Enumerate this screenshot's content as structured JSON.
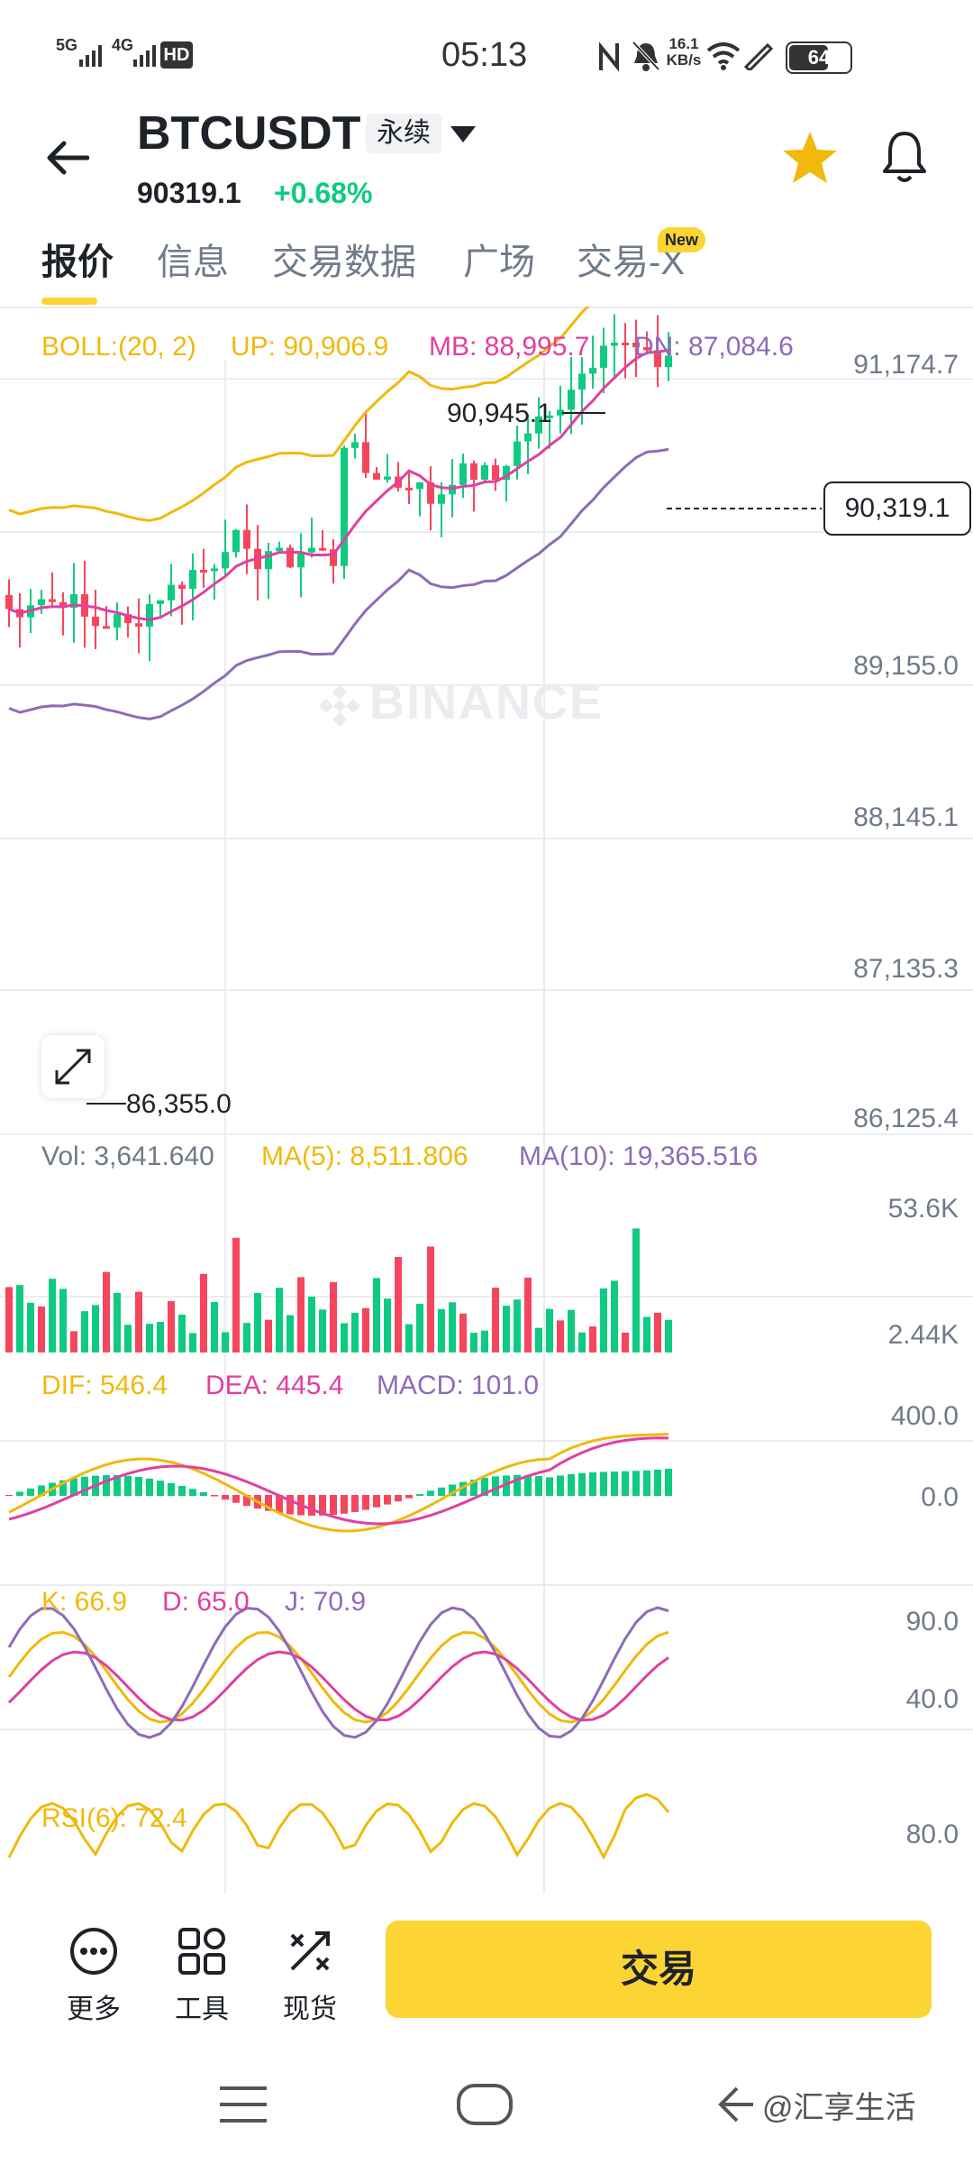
{
  "status_bar": {
    "network_1": "5G",
    "network_2": "4G",
    "hd_label": "HD",
    "clock": "05:13",
    "speed_value": "16.1",
    "speed_unit": "KB/s",
    "battery": "64"
  },
  "header": {
    "pair": "BTCUSDT",
    "perp_tag": "永续",
    "price": "90319.1",
    "change": "+0.68%"
  },
  "tabs": [
    {
      "label": "报价",
      "active": true
    },
    {
      "label": "信息",
      "active": false
    },
    {
      "label": "交易数据",
      "active": false
    },
    {
      "label": "广场",
      "active": false
    },
    {
      "label": "交易-X",
      "active": false
    }
  ],
  "new_badge": "New",
  "boll": {
    "label": "BOLL:(20, 2)",
    "up": "UP: 90,906.9",
    "mb": "MB: 88,995.7",
    "dn": "DN: 87,084.6"
  },
  "price_axis": [
    "91,174.7",
    "89,155.0",
    "88,145.1",
    "87,135.3",
    "86,125.4"
  ],
  "high_marker": "90,945.1",
  "low_marker": "86,355.0",
  "current_price_label": "90,319.1",
  "watermark_brand": "BINANCE",
  "volume": {
    "vol": "Vol: 3,641.640",
    "ma5": "MA(5): 8,511.806",
    "ma10": "MA(10): 19,365.516",
    "axis": [
      "53.6K",
      "2.44K"
    ]
  },
  "macd": {
    "dif": "DIF: 546.4",
    "dea": "DEA: 445.4",
    "macd": "MACD: 101.0",
    "axis": [
      "400.0",
      "0.0"
    ]
  },
  "kdj": {
    "k": "K: 66.9",
    "d": "D: 65.0",
    "j": "J: 70.9",
    "axis": [
      "90.0",
      "40.0"
    ]
  },
  "rsi": {
    "rsi6": "RSI(6): 72.4",
    "axis": [
      "80.0"
    ]
  },
  "actions": [
    {
      "label": "更多",
      "icon": "more-icon"
    },
    {
      "label": "工具",
      "icon": "tools-icon"
    },
    {
      "label": "现货",
      "icon": "spot-icon"
    }
  ],
  "trade_button": "交易",
  "watermark_text": "@汇享生活",
  "colors": {
    "up": "#0ecb81",
    "down": "#f6465d",
    "accent": "#fcd535",
    "boll_up": "#f0b90b",
    "boll_mid": "#e040a0",
    "boll_dn": "#8e6bb8"
  }
}
